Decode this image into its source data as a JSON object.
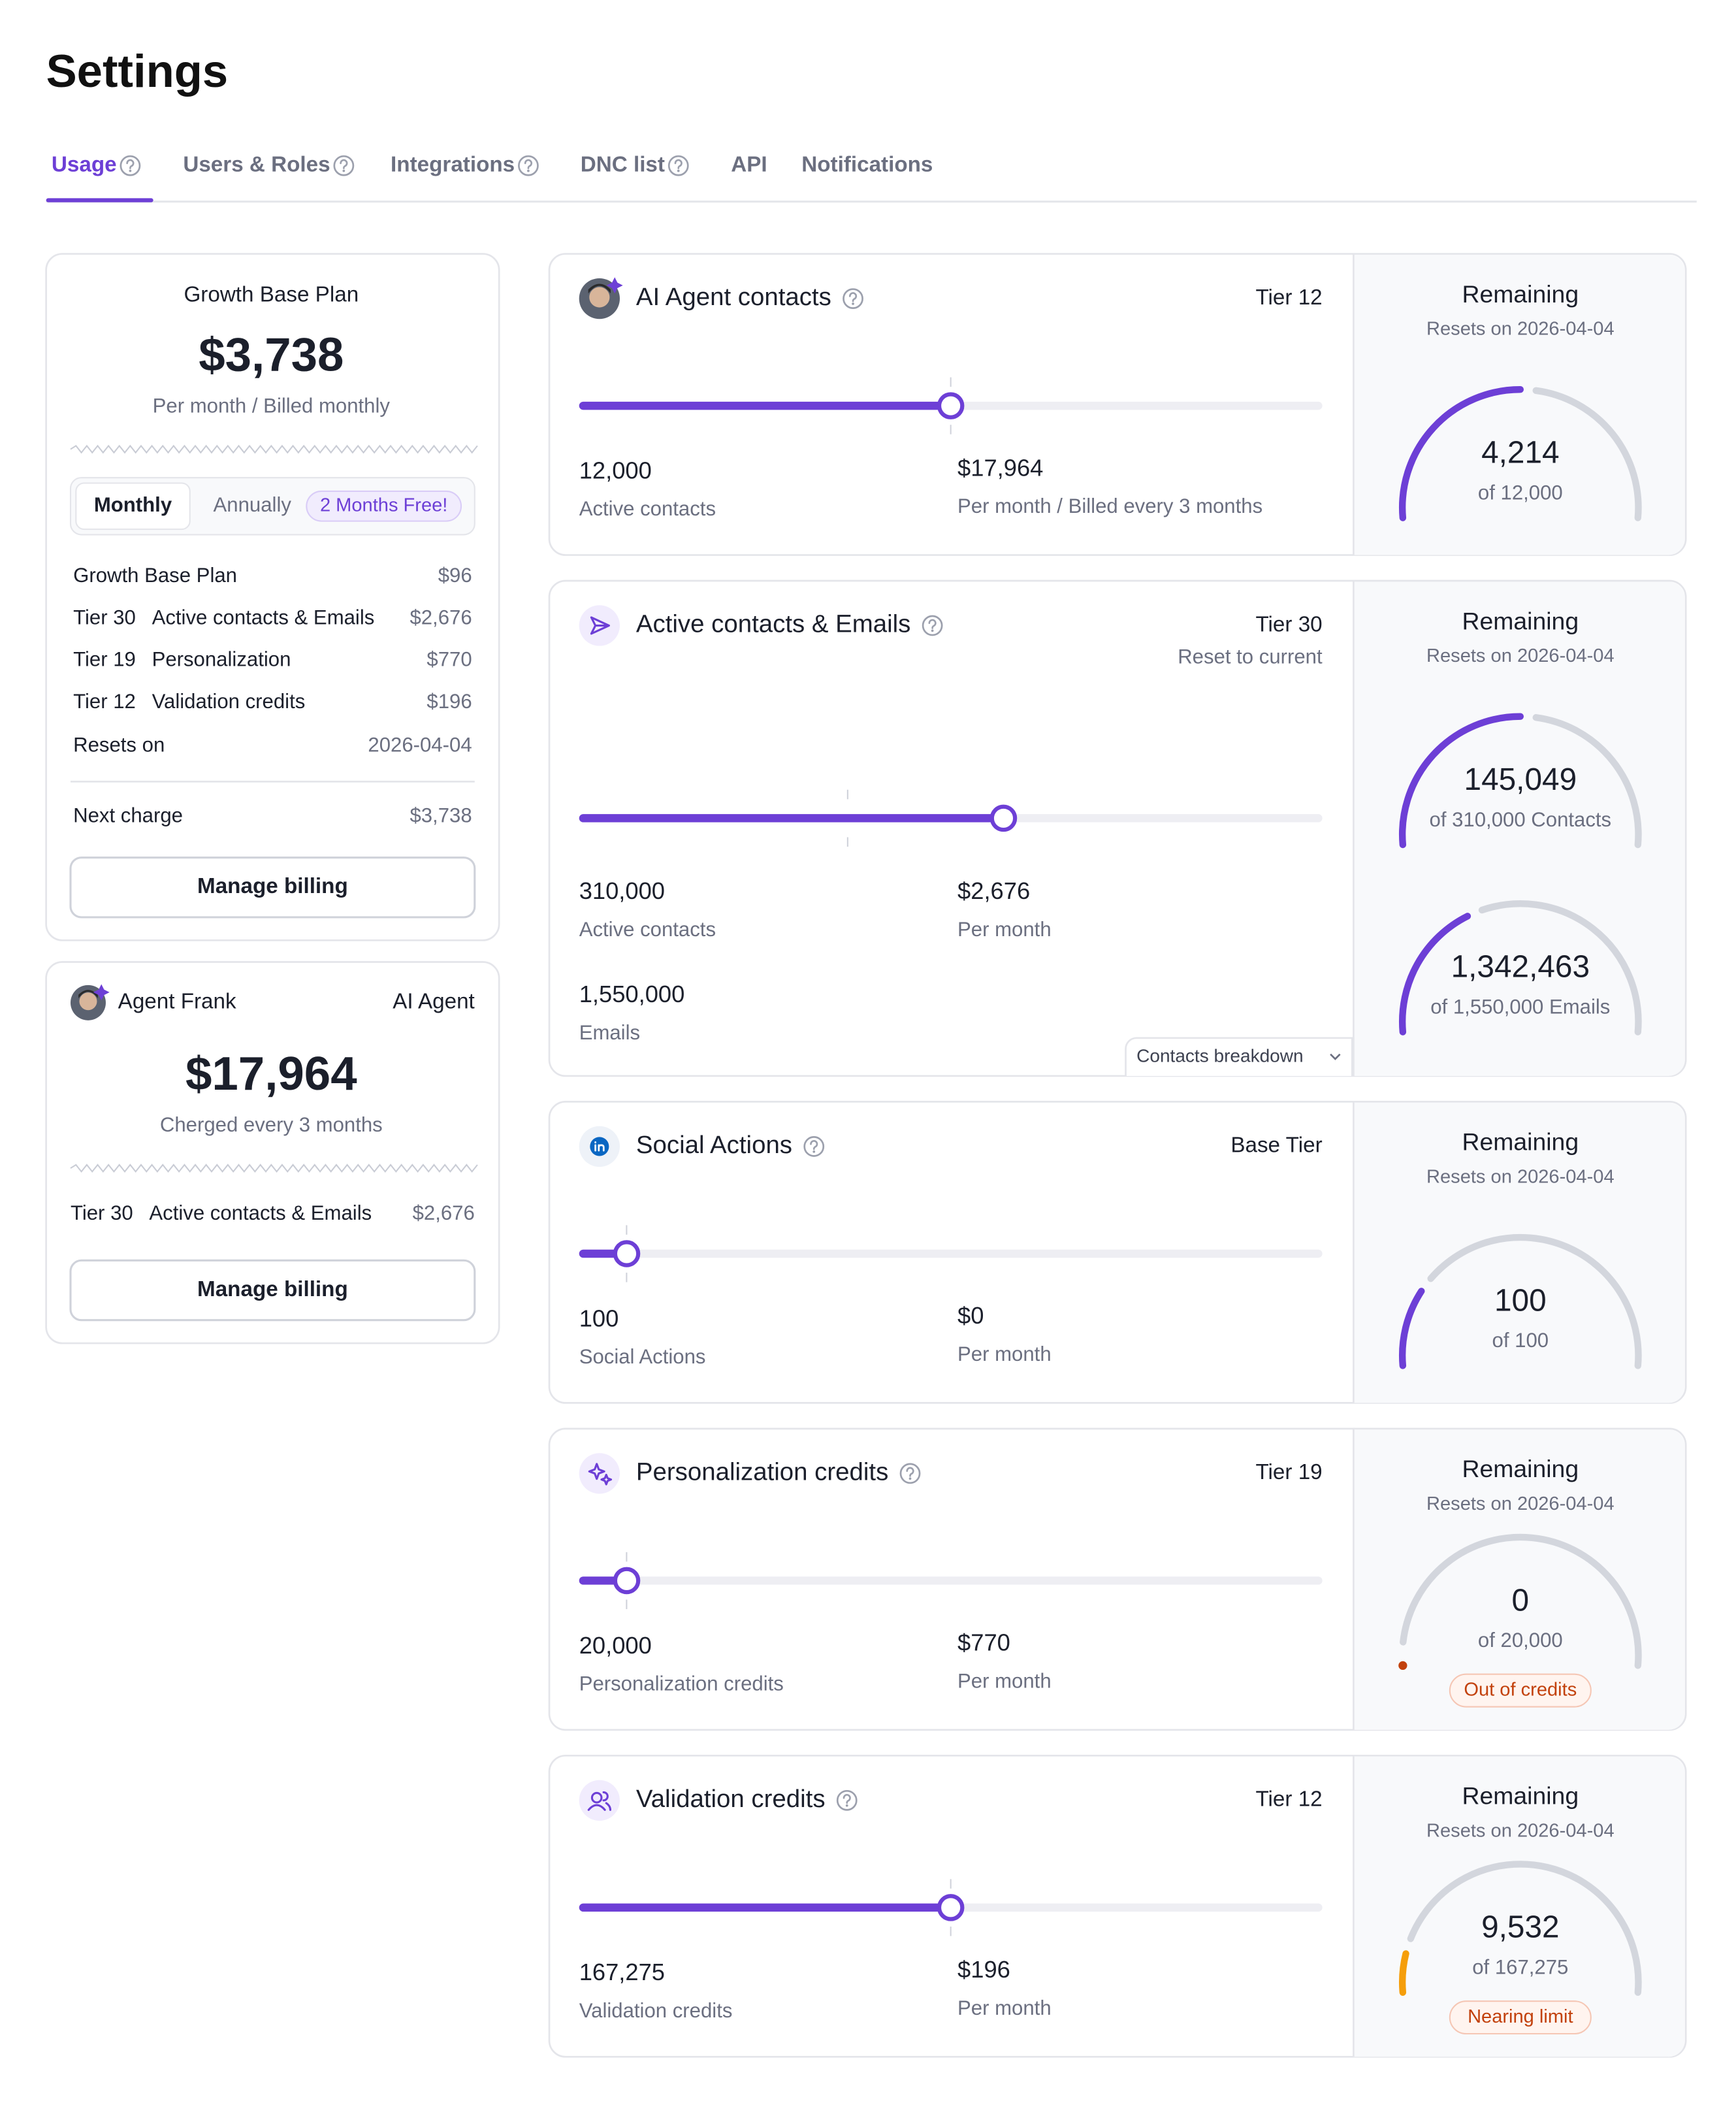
{
  "header": {
    "title": "Settings"
  },
  "tabs": [
    "Usage",
    "Users & Roles",
    "Integrations",
    "DNC list",
    "API",
    "Notifications"
  ],
  "plan": {
    "title": "Growth Base Plan",
    "price": "$3,738",
    "billing": "Per month / Billed monthly",
    "toggle": [
      "Monthly",
      "Annually"
    ],
    "promo": "2 Months Free!",
    "items": [
      {
        "name": "Growth Base Plan",
        "amount": "$96"
      },
      {
        "tier": "Tier 30",
        "name": "Active contacts & Emails",
        "amount": "$2,676"
      },
      {
        "tier": "Tier 19",
        "name": "Personalization",
        "amount": "$770"
      },
      {
        "tier": "Tier 12",
        "name": "Validation credits",
        "amount": "$196"
      },
      {
        "name": "Resets on",
        "amount": "2026-04-04"
      }
    ],
    "next_charge": {
      "label": "Next charge",
      "amount": "$3,738"
    },
    "button": "Manage billing"
  },
  "agent": {
    "name": "Agent Frank",
    "role": "AI Agent",
    "price": "$17,964",
    "billing": "Cherged every 3 months",
    "items": [
      {
        "tier": "Tier 30",
        "name": "Active contacts & Emails",
        "amount": "$2,676"
      }
    ],
    "button": "Manage billing"
  },
  "usage": [
    {
      "title": "AI Agent contacts",
      "tier": "Tier 12",
      "stats": [
        {
          "value": "12,000",
          "label": "Active contacts"
        },
        {
          "value": "$17,964",
          "label": "Per month / Billed every 3 months"
        }
      ],
      "remaining": {
        "title": "Remaining",
        "resets": "Resets on 2026-04-04",
        "gauges": [
          {
            "value": "4,214",
            "of": "of 12,000"
          }
        ]
      }
    },
    {
      "title": "Active contacts & Emails",
      "tier": "Tier 30",
      "tier_note": "Reset to current",
      "stats": [
        {
          "value": "310,000",
          "label": "Active contacts"
        },
        {
          "value": "$2,676",
          "label": "Per month"
        },
        {
          "value": "1,550,000",
          "label": "Emails"
        }
      ],
      "remaining": {
        "title": "Remaining",
        "resets": "Resets on 2026-04-04",
        "gauges": [
          {
            "value": "145,049",
            "of": "of 310,000 Contacts"
          },
          {
            "value": "1,342,463",
            "of": "of 1,550,000 Emails"
          }
        ]
      },
      "action": "Contacts breakdown"
    },
    {
      "title": "Social Actions",
      "tier": "Base Tier",
      "stats": [
        {
          "value": "100",
          "label": "Social Actions"
        },
        {
          "value": "$0",
          "label": "Per month"
        }
      ],
      "remaining": {
        "title": "Remaining",
        "resets": "Resets on 2026-04-04",
        "gauges": [
          {
            "value": "100",
            "of": "of 100"
          }
        ]
      }
    },
    {
      "title": "Personalization credits",
      "tier": "Tier 19",
      "stats": [
        {
          "value": "20,000",
          "label": "Personalization credits"
        },
        {
          "value": "$770",
          "label": "Per month"
        }
      ],
      "remaining": {
        "title": "Remaining",
        "resets": "Resets on 2026-04-04",
        "gauges": [
          {
            "value": "0",
            "of": "of 20,000",
            "status": "Out of credits"
          }
        ]
      }
    },
    {
      "title": "Validation credits",
      "tier": "Tier 12",
      "stats": [
        {
          "value": "167,275",
          "label": "Validation credits"
        },
        {
          "value": "$196",
          "label": "Per month"
        }
      ],
      "remaining": {
        "title": "Remaining",
        "resets": "Resets on 2026-04-04",
        "gauges": [
          {
            "value": "9,532",
            "of": "of 167,275",
            "status": "Nearing limit"
          }
        ]
      }
    }
  ]
}
